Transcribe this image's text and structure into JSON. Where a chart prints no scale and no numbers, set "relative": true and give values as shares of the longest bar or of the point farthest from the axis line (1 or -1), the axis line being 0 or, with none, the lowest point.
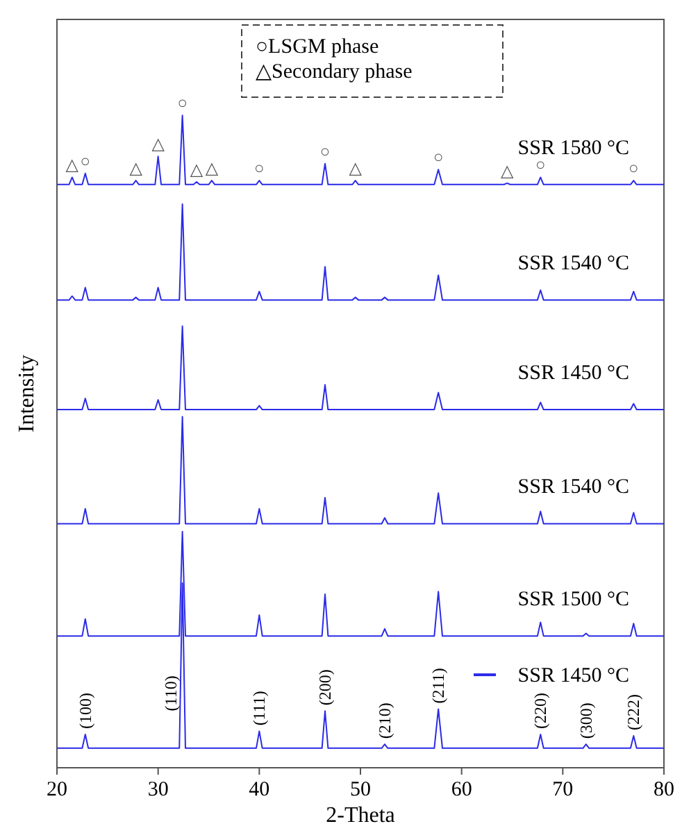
{
  "chart_data": {
    "type": "line",
    "relative": true,
    "xlabel": "2-Theta",
    "ylabel": "Intensity",
    "xlim": [
      20,
      80
    ],
    "xticks": [
      20,
      30,
      40,
      50,
      60,
      70,
      80
    ],
    "grid": false,
    "line_style": "solid",
    "series": [
      {
        "name": "SSR 1580 °C",
        "color": "#2b2be8",
        "x": [
          20,
          21.2,
          21.5,
          21.8,
          22.5,
          22.8,
          23.1,
          27.5,
          27.8,
          28.1,
          29.7,
          30,
          30.3,
          32.1,
          32.4,
          32.7,
          33.5,
          33.8,
          34.1,
          35,
          35.3,
          35.6,
          39.7,
          40,
          40.3,
          46.2,
          46.5,
          46.8,
          49.2,
          49.5,
          49.8,
          57.3,
          57.7,
          58.1,
          64.2,
          64.5,
          64.8,
          67.5,
          67.8,
          68.1,
          76.7,
          77,
          77.3,
          80
        ],
        "values": [
          0.894,
          0.894,
          0.905,
          0.894,
          0.894,
          0.911,
          0.894,
          0.894,
          0.9,
          0.894,
          0.894,
          0.937,
          0.894,
          0.894,
          1.0,
          0.894,
          0.894,
          0.898,
          0.894,
          0.894,
          0.9,
          0.894,
          0.894,
          0.9,
          0.894,
          0.894,
          0.926,
          0.894,
          0.894,
          0.9,
          0.894,
          0.894,
          0.917,
          0.894,
          0.894,
          0.896,
          0.894,
          0.894,
          0.905,
          0.894,
          0.894,
          0.9,
          0.894,
          0.894
        ]
      },
      {
        "name": "SSR 1540 °C",
        "color": "#2b2be8",
        "x": [
          20,
          21.2,
          21.5,
          21.8,
          22.5,
          22.8,
          23.1,
          27.5,
          27.8,
          28.1,
          29.7,
          30,
          30.3,
          32.1,
          32.4,
          32.7,
          39.7,
          40,
          40.3,
          46.2,
          46.5,
          46.8,
          49.2,
          49.5,
          49.8,
          52.1,
          52.4,
          52.7,
          57.3,
          57.7,
          58.1,
          67.5,
          67.8,
          68.1,
          76.7,
          77,
          77.3,
          80
        ],
        "values": [
          0.717,
          0.717,
          0.723,
          0.717,
          0.717,
          0.736,
          0.717,
          0.717,
          0.721,
          0.717,
          0.717,
          0.736,
          0.717,
          0.717,
          0.864,
          0.717,
          0.717,
          0.73,
          0.717,
          0.717,
          0.768,
          0.717,
          0.717,
          0.721,
          0.717,
          0.717,
          0.721,
          0.717,
          0.717,
          0.755,
          0.717,
          0.717,
          0.732,
          0.717,
          0.717,
          0.73,
          0.717,
          0.717
        ]
      },
      {
        "name": "SSR 1450 °C",
        "color": "#2b2be8",
        "x": [
          20,
          22.5,
          22.8,
          23.1,
          29.7,
          30,
          30.3,
          32.1,
          32.4,
          32.7,
          39.7,
          40,
          40.3,
          46.2,
          46.5,
          46.8,
          57.3,
          57.7,
          58.1,
          67.5,
          67.8,
          68.1,
          76.7,
          77,
          77.3,
          80
        ],
        "values": [
          0.549,
          0.549,
          0.566,
          0.549,
          0.549,
          0.564,
          0.549,
          0.549,
          0.677,
          0.549,
          0.549,
          0.555,
          0.549,
          0.549,
          0.587,
          0.549,
          0.549,
          0.575,
          0.549,
          0.549,
          0.56,
          0.549,
          0.549,
          0.558,
          0.549,
          0.549
        ]
      },
      {
        "name": "SSR 1540 °C",
        "color": "#2b2be8",
        "x": [
          20,
          22.5,
          22.8,
          23.1,
          32.1,
          32.4,
          32.7,
          39.7,
          40,
          40.3,
          46.2,
          46.5,
          46.8,
          52.1,
          52.4,
          52.7,
          57.3,
          57.7,
          58.1,
          67.5,
          67.8,
          68.1,
          76.7,
          77,
          77.3,
          80
        ],
        "values": [
          0.374,
          0.374,
          0.397,
          0.374,
          0.374,
          0.538,
          0.374,
          0.374,
          0.397,
          0.374,
          0.374,
          0.414,
          0.374,
          0.374,
          0.383,
          0.374,
          0.374,
          0.421,
          0.374,
          0.374,
          0.393,
          0.374,
          0.374,
          0.391,
          0.374,
          0.374
        ]
      },
      {
        "name": "SSR 1500 °C",
        "color": "#2b2be8",
        "x": [
          20,
          22.5,
          22.8,
          23.1,
          32.1,
          32.4,
          32.7,
          39.7,
          40,
          40.3,
          46.2,
          46.5,
          46.8,
          52.1,
          52.4,
          52.7,
          57.3,
          57.7,
          58.1,
          67.5,
          67.8,
          68.1,
          72,
          72.3,
          72.6,
          76.7,
          77,
          77.3,
          80
        ],
        "values": [
          0.202,
          0.202,
          0.228,
          0.202,
          0.202,
          0.362,
          0.202,
          0.202,
          0.234,
          0.202,
          0.202,
          0.266,
          0.202,
          0.202,
          0.213,
          0.202,
          0.202,
          0.27,
          0.202,
          0.202,
          0.223,
          0.202,
          0.202,
          0.206,
          0.202,
          0.202,
          0.221,
          0.202,
          0.202
        ]
      },
      {
        "name": "SSR 1450 °C",
        "color": "#2b2be8",
        "x": [
          20,
          22.5,
          22.8,
          23.1,
          32.1,
          32.4,
          32.7,
          39.7,
          40,
          40.3,
          46.2,
          46.5,
          46.8,
          52.1,
          52.4,
          52.7,
          57.3,
          57.7,
          58.1,
          67.5,
          67.8,
          68.1,
          72,
          72.3,
          72.6,
          76.7,
          77,
          77.3,
          80
        ],
        "values": [
          0.03,
          0.03,
          0.051,
          0.03,
          0.03,
          0.283,
          0.03,
          0.03,
          0.056,
          0.03,
          0.03,
          0.087,
          0.03,
          0.03,
          0.036,
          0.03,
          0.03,
          0.09,
          0.03,
          0.03,
          0.051,
          0.03,
          0.03,
          0.036,
          0.03,
          0.03,
          0.049,
          0.03,
          0.03
        ]
      }
    ],
    "annotations": [
      "○LSGM phase",
      "△Secondary phase",
      {
        "text": "△",
        "x": 21.5,
        "y": 0.905
      },
      {
        "text": "○",
        "x": 22.8,
        "y": 0.911
      },
      {
        "text": "△",
        "x": 27.8,
        "y": 0.9
      },
      {
        "text": "△",
        "x": 30,
        "y": 0.937
      },
      {
        "text": "○",
        "x": 32.4,
        "y": 1.0
      },
      {
        "text": "△",
        "x": 33.8,
        "y": 0.898
      },
      {
        "text": "△",
        "x": 35.3,
        "y": 0.9
      },
      {
        "text": "○",
        "x": 40,
        "y": 0.9
      },
      {
        "text": "○",
        "x": 46.5,
        "y": 0.926
      },
      {
        "text": "△",
        "x": 49.5,
        "y": 0.9
      },
      {
        "text": "○",
        "x": 57.7,
        "y": 0.917
      },
      {
        "text": "△",
        "x": 64.5,
        "y": 0.896
      },
      {
        "text": "○",
        "x": 67.8,
        "y": 0.905
      },
      {
        "text": "○",
        "x": 77,
        "y": 0.9
      },
      {
        "text": "(100)",
        "x": 22.8,
        "y": 0.051
      },
      {
        "text": "(110)",
        "x": 32.2,
        "y": 0.114
      },
      {
        "text": "(111)",
        "x": 40,
        "y": 0.056
      },
      {
        "text": "(200)",
        "x": 46.5,
        "y": 0.087
      },
      {
        "text": "(210)",
        "x": 52.4,
        "y": 0.036
      },
      {
        "text": "(211)",
        "x": 57.7,
        "y": 0.09
      },
      {
        "text": "(220)",
        "x": 67.8,
        "y": 0.051
      },
      {
        "text": "(300)",
        "x": 72.3,
        "y": 0.036
      },
      {
        "text": "(222)",
        "x": 77,
        "y": 0.049
      }
    ]
  }
}
